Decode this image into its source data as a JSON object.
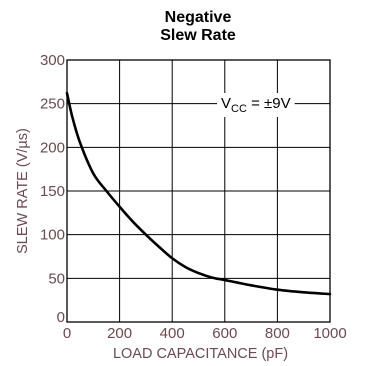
{
  "chart_data": {
    "type": "line",
    "title": "Negative\nSlew Rate",
    "title_lines": [
      "Negative",
      "Slew Rate"
    ],
    "xlabel": "LOAD CAPACITANCE (pF)",
    "ylabel": "SLEW RATE (V/µs)",
    "xlim": [
      0,
      1000
    ],
    "ylim": [
      0,
      300
    ],
    "xticks": [
      0,
      200,
      400,
      600,
      800,
      1000
    ],
    "yticks": [
      0,
      50,
      100,
      150,
      200,
      250,
      300
    ],
    "grid": true,
    "annotation": {
      "base": "V",
      "subscript": "CC",
      "rest": " = ±9V",
      "position": "upper-right"
    },
    "colors": {
      "axis_text": "#6b4a52",
      "line": "#000000",
      "grid": "#000000"
    },
    "series": [
      {
        "x": [
          0,
          20,
          50,
          100,
          150,
          200,
          250,
          300,
          350,
          400,
          450,
          500,
          550,
          600,
          650,
          700,
          800,
          900,
          1000
        ],
        "y": [
          262,
          235,
          205,
          170,
          150,
          132,
          115,
          100,
          86,
          73,
          63,
          56,
          51,
          48,
          45,
          42,
          37,
          34,
          32
        ]
      }
    ]
  }
}
